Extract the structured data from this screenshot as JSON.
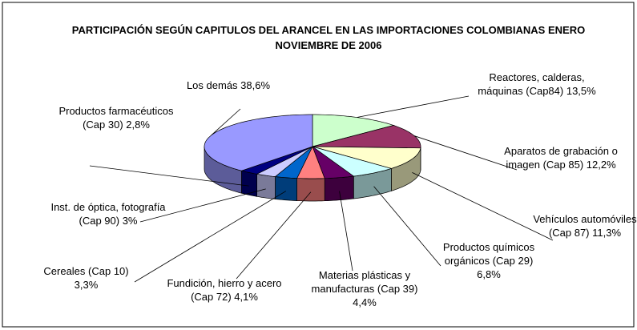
{
  "chart_data": {
    "type": "pie3d",
    "title": "PARTICIPACIÓN SEGÚN CAPITULOS DEL ARANCEL EN LAS IMPORTACIONES COLOMBIANAS ENERO NOVIEMBRE DE 2006",
    "categories": [
      "Reactores, calderas, máquinas (Cap84)",
      "Aparatos de grabación o imagen (Cap 85)",
      "Vehículos automóviles (Cap 87)",
      "Productos químicos orgánicos (Cap 29)",
      "Materias plásticas y manufacturas (Cap 39)",
      "Fundición, hierro y acero (Cap 72)",
      "Cereales (Cap  10)",
      "Inst. de óptica, fotografía (Cap 90)",
      "Productos farmacéuticos (Cap 30)",
      "Los demás"
    ],
    "values": [
      13.5,
      12.2,
      11.3,
      6.8,
      4.4,
      4.1,
      3.3,
      3,
      2.8,
      38.6
    ],
    "value_labels": [
      "13,5%",
      "12,2%",
      "11,3%",
      "6,8%",
      "4,4%",
      "4,1%",
      "3,3%",
      "3%",
      "2,8%",
      "38,6%"
    ],
    "colors": [
      "#ccffcc",
      "#993366",
      "#ffffcc",
      "#ccffff",
      "#660066",
      "#ff8080",
      "#0066cc",
      "#ccccff",
      "#000080",
      "#9999ff"
    ]
  }
}
